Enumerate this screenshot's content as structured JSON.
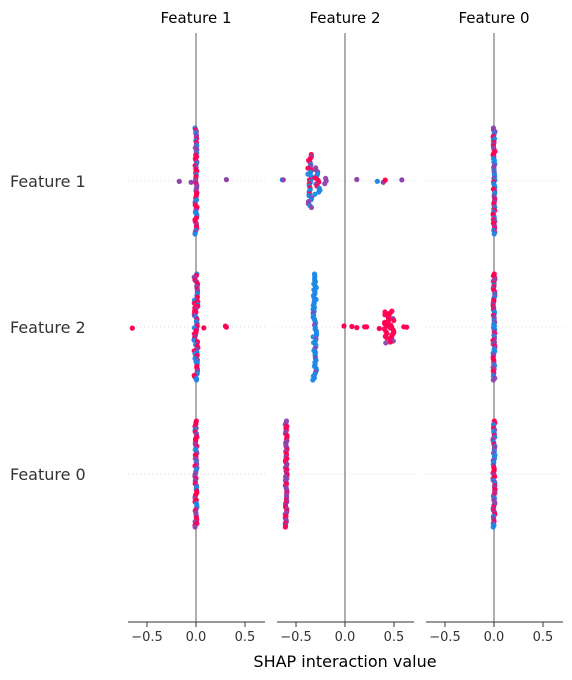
{
  "chart_data": {
    "type": "scatter",
    "subtype": "shap-interaction-beeswarm-grid",
    "xlabel": "SHAP interaction value",
    "column_titles": [
      "Feature 1",
      "Feature 2",
      "Feature 0"
    ],
    "row_labels": [
      "Feature 1",
      "Feature 2",
      "Feature 0"
    ],
    "xlim": [
      -0.7,
      0.7
    ],
    "xticks": [
      -0.5,
      0.0,
      0.5
    ],
    "xtick_labels": [
      "−0.5",
      "0.0",
      "0.5"
    ],
    "grid": "faint dotted horizontal guides per row",
    "colors": {
      "low": "#1e88e5",
      "mid": "#8e44ad",
      "high": "#ff0052",
      "zero_line": "#999999",
      "axis": "#333333",
      "guide": "#dddddd"
    },
    "cells": [
      {
        "row": "Feature 1",
        "col": "Feature 1",
        "clusters": [
          {
            "x": 0.0,
            "spread": 0.01,
            "height": 1.0,
            "count": 60,
            "color": "mix"
          }
        ],
        "outliers": [
          {
            "x": -0.17,
            "color": "mid"
          },
          {
            "x": -0.05,
            "color": "mid"
          },
          {
            "x": 0.31,
            "color": "mid"
          }
        ]
      },
      {
        "row": "Feature 1",
        "col": "Feature 2",
        "clusters": [
          {
            "x": -0.36,
            "spread": 0.02,
            "height": 0.5,
            "count": 28,
            "color": "mix"
          },
          {
            "x": -0.28,
            "spread": 0.03,
            "height": 0.25,
            "count": 14,
            "color": "mix"
          },
          {
            "x": -0.2,
            "spread": 0.01,
            "height": 0.05,
            "count": 3,
            "color": "mid"
          }
        ],
        "outliers": [
          {
            "x": -0.64,
            "color": "low"
          },
          {
            "x": -0.63,
            "color": "mid"
          },
          {
            "x": 0.12,
            "color": "mid"
          },
          {
            "x": 0.33,
            "color": "low"
          },
          {
            "x": 0.39,
            "color": "mid"
          },
          {
            "x": 0.41,
            "color": "high"
          },
          {
            "x": 0.58,
            "color": "mid"
          }
        ]
      },
      {
        "row": "Feature 1",
        "col": "Feature 0",
        "clusters": [
          {
            "x": 0.0,
            "spread": 0.01,
            "height": 1.0,
            "count": 60,
            "color": "mix"
          }
        ],
        "outliers": []
      },
      {
        "row": "Feature 2",
        "col": "Feature 1",
        "clusters": [
          {
            "x": 0.0,
            "spread": 0.02,
            "height": 1.0,
            "count": 70,
            "color": "mix"
          }
        ],
        "outliers": [
          {
            "x": -0.65,
            "color": "high"
          },
          {
            "x": 0.08,
            "color": "high"
          },
          {
            "x": 0.3,
            "color": "high"
          },
          {
            "x": 0.31,
            "color": "high"
          }
        ]
      },
      {
        "row": "Feature 2",
        "col": "Feature 2",
        "clusters": [
          {
            "x": -0.31,
            "spread": 0.02,
            "height": 1.0,
            "count": 55,
            "color": "low"
          },
          {
            "x": 0.45,
            "spread": 0.05,
            "height": 0.3,
            "count": 35,
            "color": "high"
          }
        ],
        "outliers": [
          {
            "x": -0.01,
            "color": "high"
          },
          {
            "x": 0.07,
            "color": "high"
          },
          {
            "x": 0.12,
            "color": "high"
          },
          {
            "x": 0.2,
            "color": "high"
          },
          {
            "x": 0.22,
            "color": "high"
          },
          {
            "x": 0.35,
            "color": "high"
          },
          {
            "x": 0.6,
            "color": "high"
          },
          {
            "x": 0.63,
            "color": "high"
          }
        ]
      },
      {
        "row": "Feature 2",
        "col": "Feature 0",
        "clusters": [
          {
            "x": 0.0,
            "spread": 0.01,
            "height": 1.0,
            "count": 60,
            "color": "mix"
          }
        ],
        "outliers": []
      },
      {
        "row": "Feature 0",
        "col": "Feature 1",
        "clusters": [
          {
            "x": 0.0,
            "spread": 0.01,
            "height": 1.0,
            "count": 60,
            "color": "mix"
          }
        ],
        "outliers": []
      },
      {
        "row": "Feature 0",
        "col": "Feature 2",
        "clusters": [
          {
            "x": -0.6,
            "spread": 0.01,
            "height": 1.0,
            "count": 60,
            "color": "mid-high"
          }
        ],
        "outliers": []
      },
      {
        "row": "Feature 0",
        "col": "Feature 0",
        "clusters": [
          {
            "x": 0.0,
            "spread": 0.01,
            "height": 1.0,
            "count": 60,
            "color": "mix"
          }
        ],
        "outliers": []
      }
    ]
  }
}
